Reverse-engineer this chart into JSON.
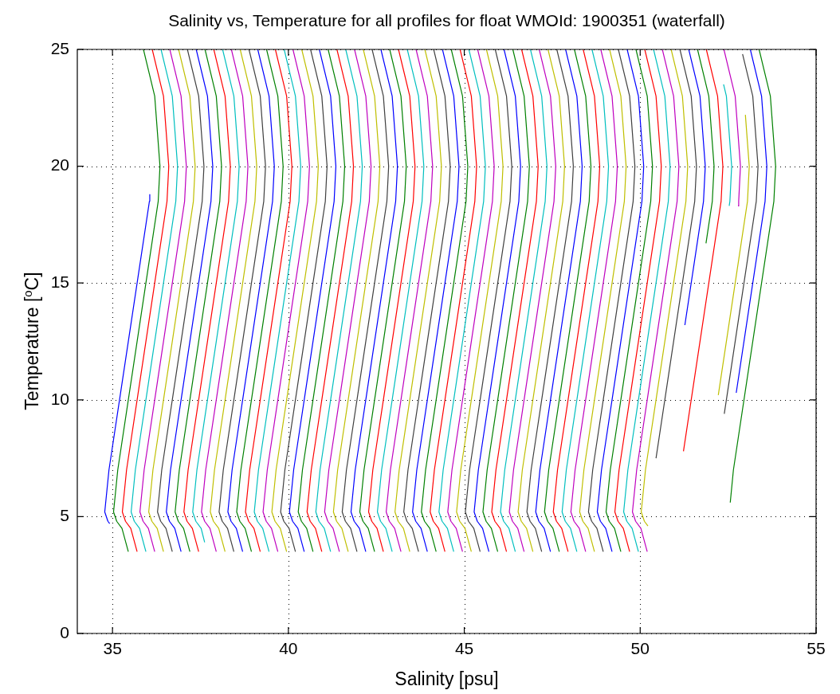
{
  "chart_data": {
    "type": "line",
    "title": "Salinity vs, Temperature for all profiles for float WMOId: 1900351 (waterfall)",
    "xlabel": "Salinity [psu]",
    "ylabel": "Temperature [$^{o}$C]",
    "xlim": [
      34,
      55
    ],
    "xticks": [
      35,
      40,
      45,
      50,
      55
    ],
    "ylim": [
      0,
      25
    ],
    "yticks": [
      0,
      5,
      10,
      15,
      20,
      25
    ],
    "grid": true,
    "line_style": "solid",
    "series": [
      {
        "color": "#0000ff",
        "x": [
          34.92,
          34.87,
          34.78,
          34.9,
          35.2,
          35.5,
          35.8,
          36.05,
          36.06
        ],
        "values": [
          4.7,
          4.8,
          5.2,
          7,
          10,
          13,
          16,
          18.5,
          18.8
        ]
      },
      {
        "color": "#008000",
        "x": [
          35.45,
          35.27,
          35.12,
          35.03,
          35.15,
          35.45,
          35.75,
          36.05,
          36.3,
          36.35,
          36.2,
          35.88
        ],
        "values": [
          3.5,
          4.5,
          4.8,
          5.2,
          7,
          10,
          13,
          16,
          18.5,
          20,
          23,
          25
        ]
      },
      {
        "color": "#ff0000",
        "x": [
          35.7,
          35.52,
          35.37,
          35.28,
          35.4,
          35.7,
          36,
          36.3,
          36.55,
          36.6,
          36.45,
          36.13
        ],
        "values": [
          3.5,
          4.5,
          4.8,
          5.2,
          7,
          10,
          13,
          16,
          18.5,
          20,
          23,
          25
        ]
      },
      {
        "color": "#00bfbf",
        "x": [
          35.95,
          35.77,
          35.62,
          35.53,
          35.65,
          35.95,
          36.25,
          36.55,
          36.8,
          36.85,
          36.7,
          36.38
        ],
        "values": [
          3.5,
          4.5,
          4.8,
          5.2,
          7,
          10,
          13,
          16,
          18.5,
          20,
          23,
          25
        ]
      },
      {
        "color": "#bf00bf",
        "x": [
          36.2,
          36.02,
          35.87,
          35.78,
          35.9,
          36.2,
          36.5,
          36.8,
          37.05,
          37.1,
          36.95,
          36.63
        ],
        "values": [
          3.5,
          4.5,
          4.8,
          5.2,
          7,
          10,
          13,
          16,
          18.5,
          20,
          23,
          25
        ]
      },
      {
        "color": "#bfbf00",
        "x": [
          36.45,
          36.27,
          36.12,
          36.03,
          36.15,
          36.45,
          36.75,
          37.05,
          37.3,
          37.35,
          37.2,
          36.88
        ],
        "values": [
          3.5,
          4.5,
          4.8,
          5.2,
          7,
          10,
          13,
          16,
          18.5,
          20,
          23,
          25
        ]
      },
      {
        "color": "#404040",
        "x": [
          36.7,
          36.52,
          36.37,
          36.28,
          36.4,
          36.7,
          37,
          37.3,
          37.55,
          37.6,
          37.45,
          37.13
        ],
        "values": [
          3.5,
          4.5,
          4.8,
          5.2,
          7,
          10,
          13,
          16,
          18.5,
          20,
          23,
          25
        ]
      },
      {
        "color": "#0000ff",
        "x": [
          36.95,
          36.77,
          36.62,
          36.53,
          36.65,
          36.95,
          37.25,
          37.55,
          37.8,
          37.85,
          37.7,
          37.38
        ],
        "values": [
          3.5,
          4.5,
          4.8,
          5.2,
          7,
          10,
          13,
          16,
          18.5,
          20,
          23,
          25
        ]
      },
      {
        "color": "#008000",
        "x": [
          37.2,
          37.02,
          36.87,
          36.78,
          36.9,
          37.2,
          37.5,
          37.8,
          38.05,
          38.1,
          37.95,
          37.63
        ],
        "values": [
          3.5,
          4.5,
          4.8,
          5.2,
          7,
          10,
          13,
          16,
          18.5,
          20,
          23,
          25
        ]
      },
      {
        "color": "#ff0000",
        "x": [
          37.45,
          37.27,
          37.12,
          37.03,
          37.15,
          37.45,
          37.75,
          38.05,
          38.3,
          38.35,
          38.2,
          37.88
        ],
        "values": [
          3.5,
          4.5,
          4.8,
          5.2,
          7,
          10,
          13,
          16,
          18.5,
          20,
          23,
          25
        ]
      },
      {
        "color": "#00bfbf",
        "x": [
          37.62,
          37.52,
          37.37,
          37.28,
          37.4,
          37.7,
          38,
          38.3,
          38.55,
          38.6,
          38.45,
          38.13
        ],
        "values": [
          3.9,
          4.5,
          4.8,
          5.2,
          7,
          10,
          13,
          16,
          18.5,
          20,
          23,
          25
        ]
      },
      {
        "color": "#bf00bf",
        "x": [
          37.95,
          37.77,
          37.62,
          37.53,
          37.65,
          37.95,
          38.25,
          38.55,
          38.8,
          38.85,
          38.7,
          38.38
        ],
        "values": [
          3.5,
          4.5,
          4.8,
          5.2,
          7,
          10,
          13,
          16,
          18.5,
          20,
          23,
          25
        ]
      },
      {
        "color": "#bfbf00",
        "x": [
          38.2,
          38.02,
          37.87,
          37.78,
          37.9,
          38.2,
          38.5,
          38.8,
          39.05,
          39.1,
          38.95,
          38.63
        ],
        "values": [
          3.5,
          4.5,
          4.8,
          5.2,
          7,
          10,
          13,
          16,
          18.5,
          20,
          23,
          25
        ]
      },
      {
        "color": "#404040",
        "x": [
          38.45,
          38.27,
          38.12,
          38.03,
          38.15,
          38.45,
          38.75,
          39.05,
          39.3,
          39.35,
          39.2,
          38.88
        ],
        "values": [
          3.5,
          4.5,
          4.8,
          5.2,
          7,
          10,
          13,
          16,
          18.5,
          20,
          23,
          25
        ]
      },
      {
        "color": "#0000ff",
        "x": [
          38.7,
          38.52,
          38.37,
          38.28,
          38.4,
          38.7,
          39,
          39.3,
          39.55,
          39.6,
          39.45,
          39.13
        ],
        "values": [
          3.5,
          4.5,
          4.8,
          5.2,
          7,
          10,
          13,
          16,
          18.5,
          20,
          23,
          25
        ]
      },
      {
        "color": "#008000",
        "x": [
          38.95,
          38.77,
          38.62,
          38.53,
          38.65,
          38.95,
          39.25,
          39.55,
          39.8,
          39.85,
          39.7,
          39.38
        ],
        "values": [
          3.5,
          4.5,
          4.8,
          5.2,
          7,
          10,
          13,
          16,
          18.5,
          20,
          23,
          25
        ]
      },
      {
        "color": "#ff0000",
        "x": [
          39.2,
          39.02,
          38.87,
          38.78,
          38.9,
          39.2,
          39.5,
          39.8,
          40.05,
          40.1,
          39.95,
          39.63
        ],
        "values": [
          3.5,
          4.5,
          4.8,
          5.2,
          7,
          10,
          13,
          16,
          18.5,
          20,
          23,
          25
        ]
      },
      {
        "color": "#00bfbf",
        "x": [
          39.45,
          39.27,
          39.12,
          39.03,
          39.15,
          39.45,
          39.75,
          40.05,
          40.3,
          40.35,
          40.2,
          39.88
        ],
        "values": [
          3.5,
          4.5,
          4.8,
          5.2,
          7,
          10,
          13,
          16,
          18.5,
          20,
          23,
          25
        ]
      },
      {
        "color": "#bf00bf",
        "x": [
          39.7,
          39.52,
          39.37,
          39.28,
          39.4,
          39.7,
          40,
          40.3,
          40.55,
          40.6,
          40.45,
          40.13
        ],
        "values": [
          3.5,
          4.5,
          4.8,
          5.2,
          7,
          10,
          13,
          16,
          18.5,
          20,
          23,
          25
        ]
      },
      {
        "color": "#bfbf00",
        "x": [
          39.95,
          39.77,
          39.62,
          39.53,
          39.65,
          39.95,
          40.25,
          40.55,
          40.8,
          40.85,
          40.7,
          40.38
        ],
        "values": [
          3.5,
          4.5,
          4.8,
          5.2,
          7,
          10,
          13,
          16,
          18.5,
          20,
          23,
          25
        ]
      },
      {
        "color": "#404040",
        "x": [
          40.2,
          40.02,
          39.87,
          39.78,
          39.9,
          40.2,
          40.5,
          40.8,
          41.05,
          41.1,
          40.95,
          40.63
        ],
        "values": [
          3.5,
          4.5,
          4.8,
          5.2,
          7,
          10,
          13,
          16,
          18.5,
          20,
          23,
          25
        ]
      },
      {
        "color": "#0000ff",
        "x": [
          40.45,
          40.27,
          40.12,
          40.03,
          40.15,
          40.45,
          40.75,
          41.05,
          41.3,
          41.35,
          41.2,
          40.88
        ],
        "values": [
          3.5,
          4.5,
          4.8,
          5.2,
          7,
          10,
          13,
          16,
          18.5,
          20,
          23,
          25
        ]
      },
      {
        "color": "#008000",
        "x": [
          40.7,
          40.52,
          40.37,
          40.28,
          40.4,
          40.7,
          41,
          41.3,
          41.55,
          41.6,
          41.45,
          41.13
        ],
        "values": [
          3.5,
          4.5,
          4.8,
          5.2,
          7,
          10,
          13,
          16,
          18.5,
          20,
          23,
          25
        ]
      },
      {
        "color": "#ff0000",
        "x": [
          40.95,
          40.77,
          40.62,
          40.53,
          40.65,
          40.95,
          41.25,
          41.55,
          41.8,
          41.85,
          41.7,
          41.38
        ],
        "values": [
          3.5,
          4.5,
          4.8,
          5.2,
          7,
          10,
          13,
          16,
          18.5,
          20,
          23,
          25
        ]
      },
      {
        "color": "#00bfbf",
        "x": [
          41.2,
          41.02,
          40.87,
          40.78,
          40.9,
          41.2,
          41.5,
          41.8,
          42.05,
          42.1,
          41.95,
          41.63
        ],
        "values": [
          3.5,
          4.5,
          4.8,
          5.2,
          7,
          10,
          13,
          16,
          18.5,
          20,
          23,
          25
        ]
      },
      {
        "color": "#bf00bf",
        "x": [
          41.45,
          41.27,
          41.12,
          41.03,
          41.15,
          41.45,
          41.75,
          42.05,
          42.3,
          42.35,
          42.2,
          41.88
        ],
        "values": [
          3.5,
          4.5,
          4.8,
          5.2,
          7,
          10,
          13,
          16,
          18.5,
          20,
          23,
          25
        ]
      },
      {
        "color": "#bfbf00",
        "x": [
          41.7,
          41.52,
          41.37,
          41.28,
          41.4,
          41.7,
          42,
          42.3,
          42.55,
          42.6,
          42.45,
          42.13
        ],
        "values": [
          3.5,
          4.5,
          4.8,
          5.2,
          7,
          10,
          13,
          16,
          18.5,
          20,
          23,
          25
        ]
      },
      {
        "color": "#404040",
        "x": [
          41.95,
          41.77,
          41.62,
          41.53,
          41.65,
          41.95,
          42.25,
          42.55,
          42.8,
          42.85,
          42.7,
          42.38
        ],
        "values": [
          3.5,
          4.5,
          4.8,
          5.2,
          7,
          10,
          13,
          16,
          18.5,
          20,
          23,
          25
        ]
      },
      {
        "color": "#0000ff",
        "x": [
          42.2,
          42.02,
          41.87,
          41.78,
          41.9,
          42.2,
          42.5,
          42.8,
          43.05,
          43.1,
          42.95,
          42.63
        ],
        "values": [
          3.5,
          4.5,
          4.8,
          5.2,
          7,
          10,
          13,
          16,
          18.5,
          20,
          23,
          25
        ]
      },
      {
        "color": "#008000",
        "x": [
          42.45,
          42.27,
          42.12,
          42.03,
          42.15,
          42.45,
          42.75,
          43.05,
          43.3,
          43.35,
          43.2,
          42.88
        ],
        "values": [
          3.5,
          4.5,
          4.8,
          5.2,
          7,
          10,
          13,
          16,
          18.5,
          20,
          23,
          25
        ]
      },
      {
        "color": "#ff0000",
        "x": [
          42.7,
          42.52,
          42.37,
          42.28,
          42.4,
          42.7,
          43,
          43.3,
          43.55,
          43.6,
          43.45,
          43.13
        ],
        "values": [
          3.5,
          4.5,
          4.8,
          5.2,
          7,
          10,
          13,
          16,
          18.5,
          20,
          23,
          25
        ]
      },
      {
        "color": "#00bfbf",
        "x": [
          42.95,
          42.77,
          42.62,
          42.53,
          42.65,
          42.95,
          43.25,
          43.55,
          43.8,
          43.85,
          43.7,
          43.38
        ],
        "values": [
          3.5,
          4.5,
          4.8,
          5.2,
          7,
          10,
          13,
          16,
          18.5,
          20,
          23,
          25
        ]
      },
      {
        "color": "#bf00bf",
        "x": [
          43.2,
          43.02,
          42.87,
          42.78,
          42.9,
          43.2,
          43.5,
          43.8,
          44.05,
          44.1,
          43.95,
          43.63
        ],
        "values": [
          3.5,
          4.5,
          4.8,
          5.2,
          7,
          10,
          13,
          16,
          18.5,
          20,
          23,
          25
        ]
      },
      {
        "color": "#bfbf00",
        "x": [
          43.45,
          43.27,
          43.12,
          43.03,
          43.15,
          43.45,
          43.75,
          44.05,
          44.3,
          44.35,
          44.2,
          43.88
        ],
        "values": [
          3.5,
          4.5,
          4.8,
          5.2,
          7,
          10,
          13,
          16,
          18.5,
          20,
          23,
          25
        ]
      },
      {
        "color": "#404040",
        "x": [
          43.7,
          43.52,
          43.37,
          43.28,
          43.4,
          43.7,
          44,
          44.3,
          44.55,
          44.6,
          44.45,
          44.13
        ],
        "values": [
          3.5,
          4.5,
          4.8,
          5.2,
          7,
          10,
          13,
          16,
          18.5,
          20,
          23,
          25
        ]
      },
      {
        "color": "#0000ff",
        "x": [
          43.95,
          43.77,
          43.62,
          43.53,
          43.65,
          43.95,
          44.25,
          44.55,
          44.8,
          44.85,
          44.7,
          44.38
        ],
        "values": [
          3.5,
          4.5,
          4.8,
          5.2,
          7,
          10,
          13,
          16,
          18.5,
          20,
          23,
          25
        ]
      },
      {
        "color": "#008000",
        "x": [
          44.2,
          44.02,
          43.87,
          43.78,
          43.9,
          44.2,
          44.5,
          44.8,
          45.05,
          45.1,
          44.95,
          44.63
        ],
        "values": [
          3.5,
          4.5,
          4.8,
          5.2,
          7,
          10,
          13,
          16,
          18.5,
          20,
          23,
          25
        ]
      },
      {
        "color": "#ff0000",
        "x": [
          44.45,
          44.27,
          44.12,
          44.03,
          44.15,
          44.45,
          44.75,
          45.05,
          45.3,
          45.35,
          45.2,
          44.88
        ],
        "values": [
          3.5,
          4.5,
          4.8,
          5.2,
          7,
          10,
          13,
          16,
          18.5,
          20,
          23,
          25
        ]
      },
      {
        "color": "#00bfbf",
        "x": [
          44.7,
          44.52,
          44.37,
          44.28,
          44.4,
          44.7,
          45,
          45.3,
          45.55,
          45.6,
          45.45,
          45.13
        ],
        "values": [
          3.5,
          4.5,
          4.8,
          5.2,
          7,
          10,
          13,
          16,
          18.5,
          20,
          23,
          25
        ]
      },
      {
        "color": "#bf00bf",
        "x": [
          44.95,
          44.77,
          44.62,
          44.53,
          44.65,
          44.95,
          45.25,
          45.55,
          45.8,
          45.85,
          45.7,
          45.38
        ],
        "values": [
          3.5,
          4.5,
          4.8,
          5.2,
          7,
          10,
          13,
          16,
          18.5,
          20,
          23,
          25
        ]
      },
      {
        "color": "#bfbf00",
        "x": [
          45.2,
          45.02,
          44.87,
          44.78,
          44.9,
          45.2,
          45.5,
          45.8,
          46.05,
          46.1,
          45.95,
          45.63
        ],
        "values": [
          3.5,
          4.5,
          4.8,
          5.2,
          7,
          10,
          13,
          16,
          18.5,
          20,
          23,
          25
        ]
      },
      {
        "color": "#404040",
        "x": [
          45.45,
          45.27,
          45.12,
          45.03,
          45.15,
          45.45,
          45.75,
          46.05,
          46.3,
          46.35,
          46.2,
          45.88
        ],
        "values": [
          3.5,
          4.5,
          4.8,
          5.2,
          7,
          10,
          13,
          16,
          18.5,
          20,
          23,
          25
        ]
      },
      {
        "color": "#0000ff",
        "x": [
          45.7,
          45.52,
          45.37,
          45.28,
          45.4,
          45.7,
          46,
          46.3,
          46.55,
          46.6,
          46.45,
          46.13
        ],
        "values": [
          3.5,
          4.5,
          4.8,
          5.2,
          7,
          10,
          13,
          16,
          18.5,
          20,
          23,
          25
        ]
      },
      {
        "color": "#008000",
        "x": [
          45.95,
          45.77,
          45.62,
          45.53,
          45.65,
          45.95,
          46.25,
          46.55,
          46.8,
          46.85,
          46.7,
          46.38
        ],
        "values": [
          3.5,
          4.5,
          4.8,
          5.2,
          7,
          10,
          13,
          16,
          18.5,
          20,
          23,
          25
        ]
      },
      {
        "color": "#ff0000",
        "x": [
          46.2,
          46.02,
          45.87,
          45.78,
          45.9,
          46.2,
          46.5,
          46.8,
          47.05,
          47.1,
          46.95,
          46.63
        ],
        "values": [
          3.5,
          4.5,
          4.8,
          5.2,
          7,
          10,
          13,
          16,
          18.5,
          20,
          23,
          25
        ]
      },
      {
        "color": "#00bfbf",
        "x": [
          46.45,
          46.27,
          46.12,
          46.03,
          46.15,
          46.45,
          46.75,
          47.05,
          47.3,
          47.35,
          47.2,
          46.88
        ],
        "values": [
          3.5,
          4.5,
          4.8,
          5.2,
          7,
          10,
          13,
          16,
          18.5,
          20,
          23,
          25
        ]
      },
      {
        "color": "#bf00bf",
        "x": [
          46.7,
          46.52,
          46.37,
          46.28,
          46.4,
          46.7,
          47,
          47.3,
          47.55,
          47.6,
          47.45,
          47.13
        ],
        "values": [
          3.5,
          4.5,
          4.8,
          5.2,
          7,
          10,
          13,
          16,
          18.5,
          20,
          23,
          25
        ]
      },
      {
        "color": "#bfbf00",
        "x": [
          46.95,
          46.77,
          46.62,
          46.53,
          46.65,
          46.95,
          47.25,
          47.55,
          47.8,
          47.85,
          47.7,
          47.38
        ],
        "values": [
          3.5,
          4.5,
          4.8,
          5.2,
          7,
          10,
          13,
          16,
          18.5,
          20,
          23,
          25
        ]
      },
      {
        "color": "#404040",
        "x": [
          47.2,
          47.02,
          46.87,
          46.78,
          46.9,
          47.2,
          47.5,
          47.8,
          48.05,
          48.1,
          47.95,
          47.63
        ],
        "values": [
          3.5,
          4.5,
          4.8,
          5.2,
          7,
          10,
          13,
          16,
          18.5,
          20,
          23,
          25
        ]
      },
      {
        "color": "#0000ff",
        "x": [
          47.45,
          47.27,
          47.12,
          47.03,
          47.15,
          47.45,
          47.75,
          48.05,
          48.3,
          48.35,
          48.2,
          47.88
        ],
        "values": [
          3.5,
          4.5,
          4.8,
          5.2,
          7,
          10,
          13,
          16,
          18.5,
          20,
          23,
          25
        ]
      },
      {
        "color": "#008000",
        "x": [
          47.7,
          47.52,
          47.37,
          47.28,
          47.4,
          47.7,
          48,
          48.3,
          48.55,
          48.6,
          48.45,
          48.13
        ],
        "values": [
          3.5,
          4.5,
          4.8,
          5.2,
          7,
          10,
          13,
          16,
          18.5,
          20,
          23,
          25
        ]
      },
      {
        "color": "#ff0000",
        "x": [
          47.95,
          47.77,
          47.62,
          47.53,
          47.65,
          47.95,
          48.25,
          48.55,
          48.8,
          48.85,
          48.7,
          48.38
        ],
        "values": [
          3.5,
          4.5,
          4.8,
          5.2,
          7,
          10,
          13,
          16,
          18.5,
          20,
          23,
          25
        ]
      },
      {
        "color": "#00bfbf",
        "x": [
          48.2,
          48.02,
          47.87,
          47.78,
          47.9,
          48.2,
          48.5,
          48.8,
          49.05,
          49.1,
          48.95,
          48.63
        ],
        "values": [
          3.5,
          4.5,
          4.8,
          5.2,
          7,
          10,
          13,
          16,
          18.5,
          20,
          23,
          25
        ]
      },
      {
        "color": "#bf00bf",
        "x": [
          48.45,
          48.27,
          48.12,
          48.03,
          48.15,
          48.45,
          48.75,
          49.05,
          49.3,
          49.35,
          49.2,
          48.88
        ],
        "values": [
          3.5,
          4.5,
          4.8,
          5.2,
          7,
          10,
          13,
          16,
          18.5,
          20,
          23,
          25
        ]
      },
      {
        "color": "#bfbf00",
        "x": [
          48.7,
          48.52,
          48.37,
          48.28,
          48.4,
          48.7,
          49,
          49.3,
          49.55,
          49.6,
          49.45,
          49.13
        ],
        "values": [
          3.5,
          4.5,
          4.8,
          5.2,
          7,
          10,
          13,
          16,
          18.5,
          20,
          23,
          25
        ]
      },
      {
        "color": "#404040",
        "x": [
          48.95,
          48.77,
          48.62,
          48.53,
          48.65,
          48.95,
          49.25,
          49.55,
          49.8,
          49.85,
          49.7,
          49.38
        ],
        "values": [
          3.5,
          4.5,
          4.8,
          5.2,
          7,
          10,
          13,
          16,
          18.5,
          20,
          23,
          25
        ]
      },
      {
        "color": "#0000ff",
        "x": [
          49.2,
          49.02,
          48.87,
          48.78,
          48.9,
          49.2,
          49.5,
          49.8,
          50.05,
          50.1,
          49.95,
          49.63
        ],
        "values": [
          3.5,
          4.5,
          4.8,
          5.2,
          7,
          10,
          13,
          16,
          18.5,
          20,
          23,
          25
        ]
      },
      {
        "color": "#008000",
        "x": [
          49.45,
          49.27,
          49.12,
          49.03,
          49.15,
          49.45,
          49.75,
          50.05,
          50.3,
          50.35,
          50.2,
          49.88
        ],
        "values": [
          3.5,
          4.5,
          4.8,
          5.2,
          7,
          10,
          13,
          16,
          18.5,
          20,
          23,
          25
        ]
      },
      {
        "color": "#ff0000",
        "x": [
          49.7,
          49.52,
          49.37,
          49.28,
          49.4,
          49.7,
          50,
          50.3,
          50.55,
          50.6,
          50.45,
          50.13
        ],
        "values": [
          3.5,
          4.5,
          4.8,
          5.2,
          7,
          10,
          13,
          16,
          18.5,
          20,
          23,
          25
        ]
      },
      {
        "color": "#00bfbf",
        "x": [
          49.95,
          49.77,
          49.62,
          49.53,
          49.65,
          49.95,
          50.25,
          50.55,
          50.8,
          50.85,
          50.7,
          50.38
        ],
        "values": [
          3.5,
          4.5,
          4.8,
          5.2,
          7,
          10,
          13,
          16,
          18.5,
          20,
          23,
          25
        ]
      },
      {
        "color": "#bf00bf",
        "x": [
          50.2,
          50.02,
          49.87,
          49.78,
          49.9,
          50.2,
          50.5,
          50.8,
          51.05,
          51.1,
          50.95,
          50.63
        ],
        "values": [
          3.5,
          4.5,
          4.8,
          5.2,
          7,
          10,
          13,
          16,
          18.5,
          20,
          23,
          25
        ]
      },
      {
        "color": "#bfbf00",
        "x": [
          50.22,
          50.12,
          50.03,
          50.15,
          50.45,
          50.75,
          51.05,
          51.3,
          51.35,
          51.2,
          50.88
        ],
        "values": [
          4.6,
          4.8,
          5.2,
          7,
          10,
          13,
          16,
          18.5,
          20,
          23,
          25
        ]
      },
      {
        "color": "#404040",
        "x": [
          50.45,
          50.7,
          51,
          51.3,
          51.55,
          51.6,
          51.45,
          51.13
        ],
        "values": [
          7.5,
          10,
          13,
          16,
          18.5,
          20,
          23,
          25
        ]
      },
      {
        "color": "#0000ff",
        "x": [
          51.27,
          51.55,
          51.8,
          51.85,
          51.7,
          51.38
        ],
        "values": [
          13.2,
          16,
          18.5,
          20,
          23,
          25
        ]
      },
      {
        "color": "#008000",
        "x": [
          51.87,
          52.05,
          52.1,
          51.95,
          51.63
        ],
        "values": [
          16.7,
          18.5,
          20,
          23,
          25
        ]
      },
      {
        "color": "#ff0000",
        "x": [
          51.23,
          51.45,
          51.75,
          52.05,
          52.3,
          52.35,
          52.2,
          51.88
        ],
        "values": [
          7.8,
          10,
          13,
          16,
          18.5,
          20,
          23,
          25
        ]
      },
      {
        "color": "#00bfbf",
        "x": [
          52.53,
          52.55,
          52.6,
          52.45,
          52.37
        ],
        "values": [
          18.3,
          18.5,
          20,
          23,
          23.5
        ]
      },
      {
        "color": "#bf00bf",
        "x": [
          52.78,
          52.8,
          52.85,
          52.7,
          52.38
        ],
        "values": [
          18.3,
          18.5,
          20,
          23,
          25
        ]
      },
      {
        "color": "#bfbf00",
        "x": [
          52.22,
          52.5,
          52.8,
          53.05,
          53.1,
          52.99
        ],
        "values": [
          10.2,
          13,
          16,
          18.5,
          20,
          22.2
        ]
      },
      {
        "color": "#404040",
        "x": [
          52.39,
          52.45,
          52.75,
          53.05,
          53.3,
          53.35,
          53.2,
          52.91
        ],
        "values": [
          9.4,
          10,
          13,
          16,
          18.5,
          20,
          23,
          24.8
        ]
      },
      {
        "color": "#0000ff",
        "x": [
          52.73,
          53,
          53.3,
          53.55,
          53.6,
          53.45,
          53.13
        ],
        "values": [
          10.3,
          13,
          16,
          18.5,
          20,
          23,
          25
        ]
      },
      {
        "color": "#008000",
        "x": [
          52.56,
          52.65,
          52.95,
          53.25,
          53.55,
          53.8,
          53.85,
          53.7,
          53.38
        ],
        "values": [
          5.6,
          7,
          10,
          13,
          16,
          18.5,
          20,
          23,
          25
        ]
      }
    ]
  }
}
